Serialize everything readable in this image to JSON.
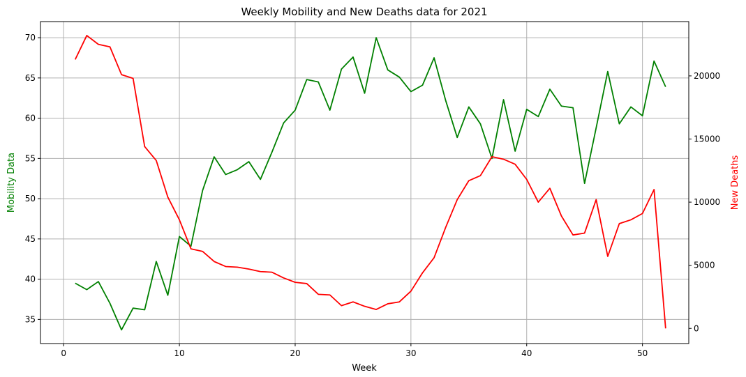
{
  "chart_data": {
    "type": "line",
    "title": "Weekly Mobility and New Deaths data for 2021",
    "xlabel": "Week",
    "ylabel_left": "Mobility Data",
    "ylabel_right": "New Deaths",
    "xlim": [
      -2,
      54
    ],
    "ylim_left": [
      32,
      72
    ],
    "ylim_right": [
      -1200,
      24300
    ],
    "x_ticks": [
      0,
      10,
      20,
      30,
      40,
      50
    ],
    "y_ticks_left": [
      35,
      40,
      45,
      50,
      55,
      60,
      65,
      70
    ],
    "y_ticks_right": [
      0,
      5000,
      10000,
      15000,
      20000
    ],
    "grid": true,
    "colors": {
      "mobility": "#008000",
      "deaths": "#ff0000",
      "grid": "#b0b0b0",
      "axis": "#000000"
    },
    "x": [
      1,
      2,
      3,
      4,
      5,
      6,
      7,
      8,
      9,
      10,
      11,
      12,
      13,
      14,
      15,
      16,
      17,
      18,
      19,
      20,
      21,
      22,
      23,
      24,
      25,
      26,
      27,
      28,
      29,
      30,
      31,
      32,
      33,
      34,
      35,
      36,
      37,
      38,
      39,
      40,
      41,
      42,
      43,
      44,
      45,
      46,
      47,
      48,
      49,
      50,
      51,
      52
    ],
    "series": [
      {
        "axis": "left",
        "values": [
          39.5,
          38.7,
          39.7,
          37.0,
          33.7,
          36.4,
          36.2,
          42.2,
          38.0,
          45.3,
          44.1,
          51.0,
          55.2,
          53.0,
          53.6,
          54.6,
          52.4,
          55.8,
          59.4,
          61.0,
          64.8,
          64.5,
          61.0,
          66.1,
          67.6,
          63.1,
          70.0,
          66.0,
          65.1,
          63.3,
          64.1,
          67.5,
          62.2,
          57.6,
          61.4,
          59.3,
          55.0,
          62.3,
          55.9,
          61.1,
          60.2,
          63.6,
          61.5,
          61.3,
          51.9,
          58.8,
          65.8,
          59.3,
          61.4,
          60.3,
          67.1,
          63.9
        ]
      },
      {
        "axis": "right",
        "values": [
          21300,
          23200,
          22500,
          22300,
          20100,
          19800,
          14400,
          13300,
          10400,
          8600,
          6300,
          6100,
          5300,
          4900,
          4850,
          4700,
          4500,
          4450,
          4000,
          3650,
          3550,
          2700,
          2650,
          1800,
          2100,
          1750,
          1500,
          1950,
          2100,
          2950,
          4400,
          5600,
          8000,
          10200,
          11700,
          12100,
          13600,
          13400,
          13000,
          11800,
          10000,
          11100,
          8900,
          7400,
          7550,
          10200,
          5700,
          8300,
          8600,
          9100,
          11000,
          0
        ]
      }
    ]
  }
}
